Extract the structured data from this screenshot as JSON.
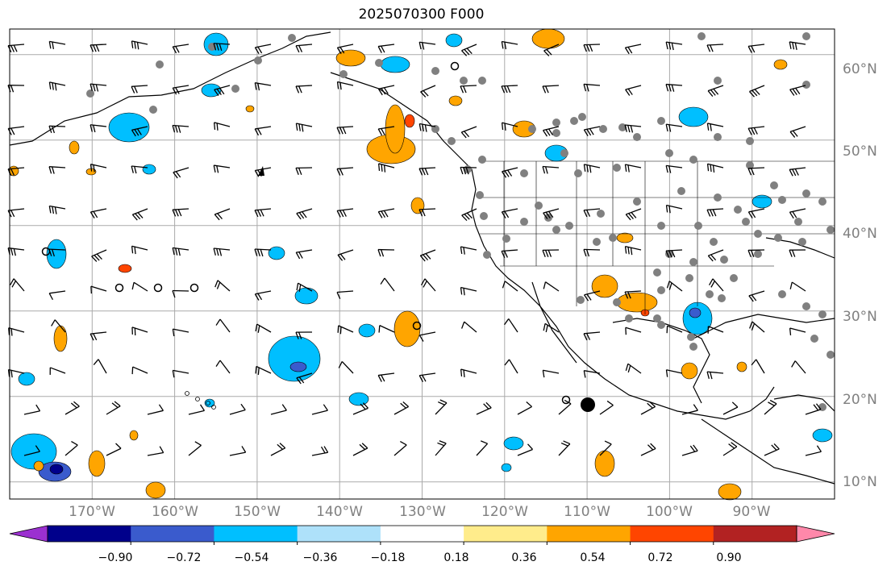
{
  "title": "2025070300 F000",
  "map": {
    "extent": {
      "lon_min": -180,
      "lon_max": -80,
      "lat_min": 8,
      "lat_max": 63
    },
    "background": "#ffffff",
    "land_outline_color": "#000000",
    "grid_color": "#aaaaaa",
    "gridlines": {
      "lon": [
        -170,
        -160,
        -150,
        -140,
        -130,
        -120,
        -110,
        -100,
        -90
      ],
      "lat": [
        10,
        20,
        30,
        40,
        50,
        60
      ]
    },
    "lat_labels": [
      "60°N",
      "50°N",
      "40°N",
      "30°N",
      "20°N",
      "10°N"
    ],
    "lon_labels": [
      "170°W",
      "160°W",
      "150°W",
      "140°W",
      "130°W",
      "120°W",
      "110°W",
      "100°W",
      "90°W"
    ],
    "overlays": [
      "contourf-anomaly",
      "wind-barbs",
      "station-dots"
    ]
  },
  "colorbar": {
    "extend": "both",
    "colors": [
      "#9b30d0",
      "#00008b",
      "#3a5bcd",
      "#00bfff",
      "#aee1fa",
      "#ffffff",
      "#ffec8b",
      "#ffa500",
      "#ff4500",
      "#b22222",
      "#ff88aa"
    ],
    "tick_labels": [
      "−0.90",
      "−0.72",
      "−0.54",
      "−0.36",
      "−0.18",
      "0.18",
      "0.36",
      "0.54",
      "0.72",
      "0.90"
    ]
  }
}
